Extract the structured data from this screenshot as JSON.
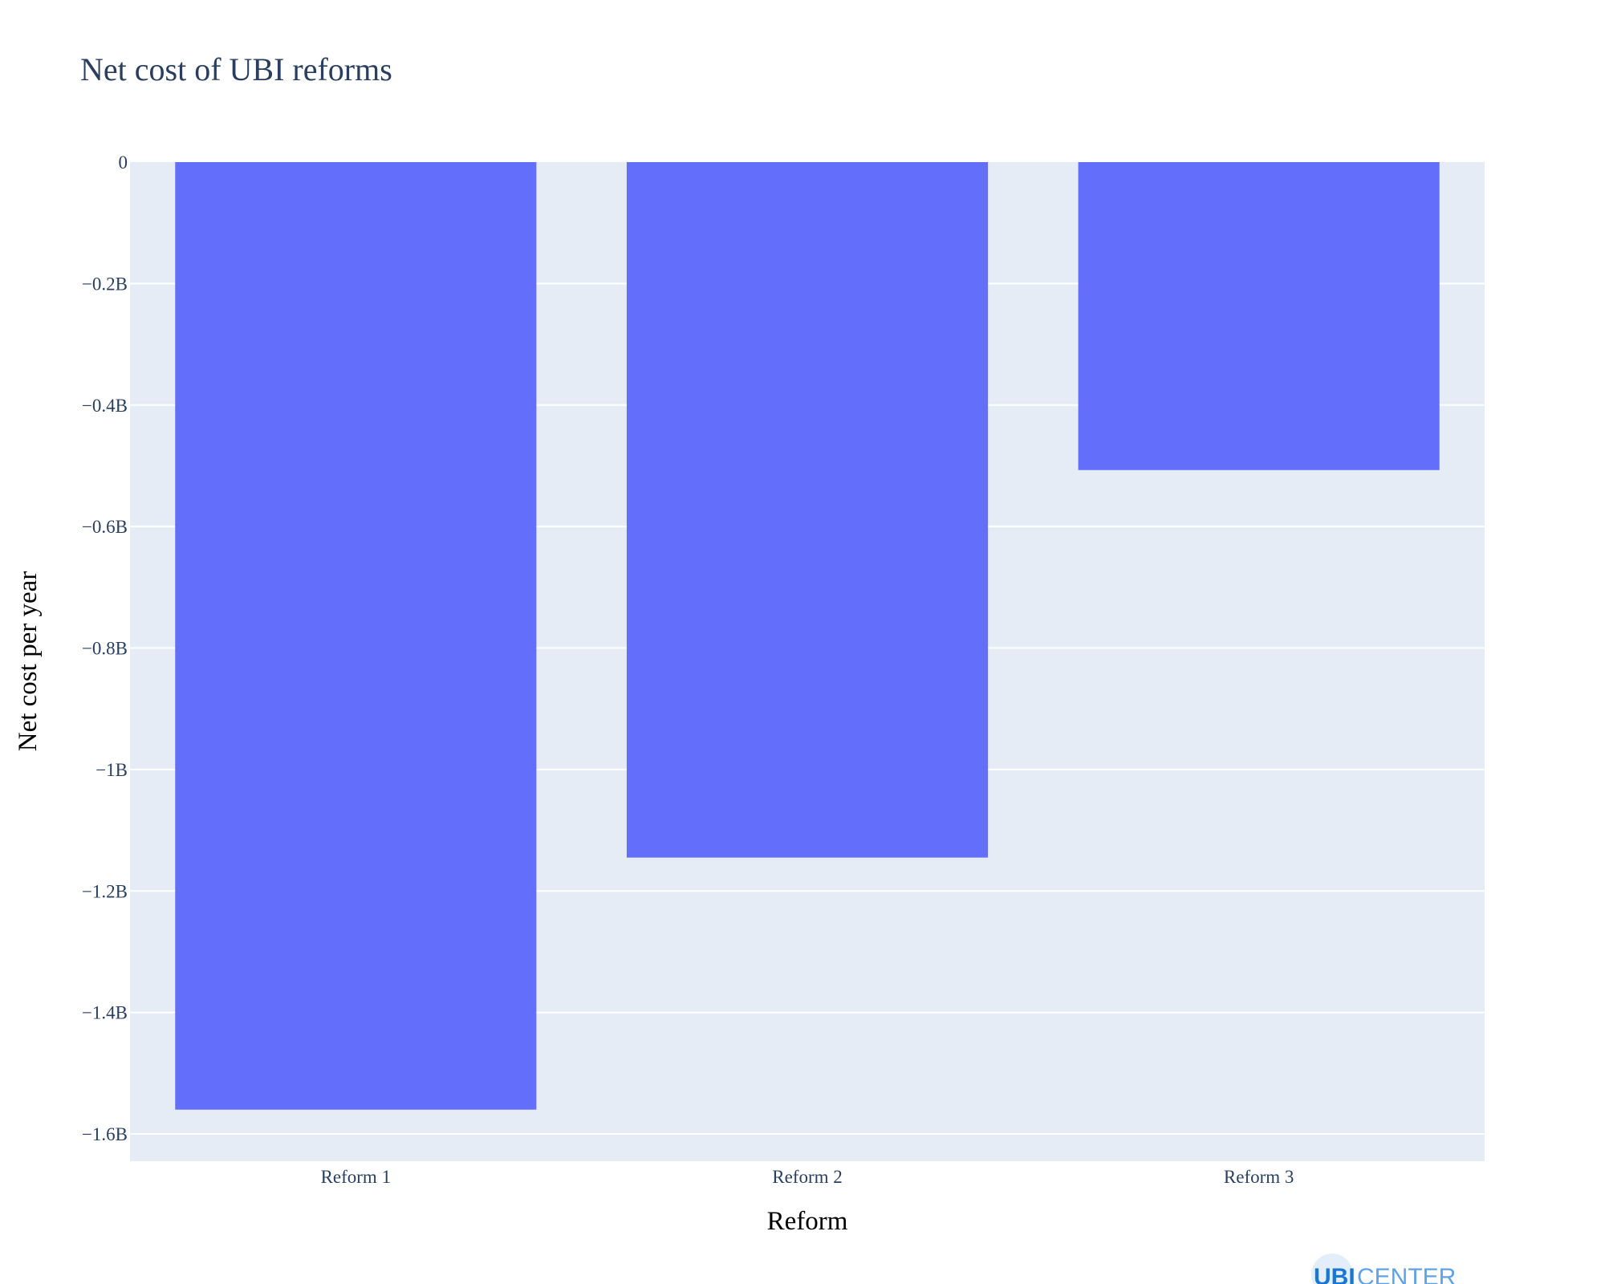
{
  "chart_data": {
    "type": "bar",
    "title": "Net cost of UBI reforms",
    "xlabel": "Reform",
    "ylabel": "Net cost per year",
    "categories": [
      "Reform 1",
      "Reform 2",
      "Reform 3"
    ],
    "values": [
      -1560000000,
      -1145000000,
      -507000000
    ],
    "ylim": [
      -1645000000,
      0
    ],
    "yticks": [
      0,
      -200000000,
      -400000000,
      -600000000,
      -800000000,
      -1000000000,
      -1200000000,
      -1400000000,
      -1600000000
    ],
    "ytick_labels": [
      "0",
      "−0.2B",
      "−0.4B",
      "−0.6B",
      "−0.8B",
      "−1B",
      "−1.2B",
      "−1.4B",
      "−1.6B"
    ],
    "grid": true,
    "legend": "none",
    "colors": {
      "bar": "#636efa",
      "plot_background": "#e5ecf6",
      "grid": "#ffffff"
    }
  },
  "logo": {
    "ubi": "UBI",
    "center": "CENTER",
    "colors": {
      "ubi": "#1976d2",
      "center": "#5ea3e8",
      "badge": "#e3eefa"
    }
  }
}
